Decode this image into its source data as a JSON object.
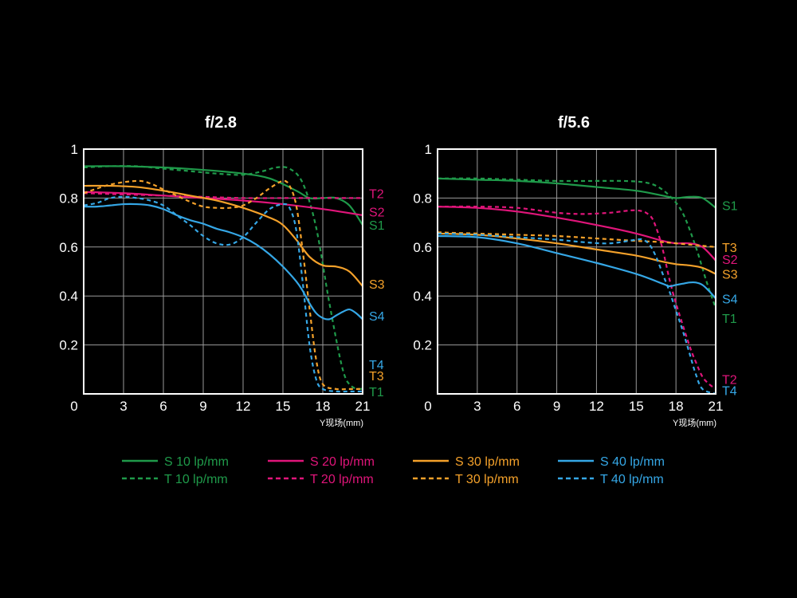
{
  "colors": {
    "background": "#000000",
    "axis": "#ffffff",
    "grid": "#9a9a9a",
    "green": "#1f9a4a",
    "magenta": "#e0157a",
    "orange": "#f4a12a",
    "blue": "#35a7e6"
  },
  "legend": [
    {
      "label": "S 10 lp/mm",
      "color": "#1f9a4a",
      "dash": false
    },
    {
      "label": "S 20 lp/mm",
      "color": "#e0157a",
      "dash": false
    },
    {
      "label": "S 30 lp/mm",
      "color": "#f4a12a",
      "dash": false
    },
    {
      "label": "S 40 lp/mm",
      "color": "#35a7e6",
      "dash": false
    },
    {
      "label": "T 10 lp/mm",
      "color": "#1f9a4a",
      "dash": true
    },
    {
      "label": "T 20 lp/mm",
      "color": "#e0157a",
      "dash": true
    },
    {
      "label": "T 30 lp/mm",
      "color": "#f4a12a",
      "dash": true
    },
    {
      "label": "T 40 lp/mm",
      "color": "#35a7e6",
      "dash": true
    }
  ],
  "chart_data": [
    {
      "type": "line",
      "title": "f/2.8",
      "xlabel": "Y现场(mm)",
      "ylabel": "",
      "xlim": [
        0,
        21
      ],
      "ylim": [
        0,
        1
      ],
      "xticks": [
        0,
        3,
        6,
        9,
        12,
        15,
        18,
        21
      ],
      "yticks": [
        0.2,
        0.4,
        0.6,
        0.8,
        1
      ],
      "ytick_labels": [
        "0.2",
        "0.4",
        "0.6",
        "0.8",
        "1"
      ],
      "grid": true,
      "series": [
        {
          "key": "S1",
          "color": "#1f9a4a",
          "dash": false,
          "end_label": "S1",
          "label_y": 0.69,
          "x": [
            0,
            3,
            6,
            9,
            12,
            14,
            16,
            17,
            18,
            19,
            20,
            21
          ],
          "y": [
            0.93,
            0.93,
            0.925,
            0.915,
            0.9,
            0.88,
            0.83,
            0.8,
            0.8,
            0.8,
            0.77,
            0.69
          ]
        },
        {
          "key": "T1",
          "color": "#1f9a4a",
          "dash": true,
          "end_label": "T1",
          "label_y": 0.01,
          "x": [
            0,
            2,
            4,
            6,
            8,
            10,
            12,
            13.5,
            14.5,
            15.5,
            16.5,
            17.5,
            18.5,
            19.5,
            20.2,
            21
          ],
          "y": [
            0.925,
            0.93,
            0.93,
            0.92,
            0.91,
            0.9,
            0.895,
            0.91,
            0.925,
            0.92,
            0.86,
            0.68,
            0.37,
            0.1,
            0.03,
            0.02
          ]
        },
        {
          "key": "S2",
          "color": "#e0157a",
          "dash": false,
          "end_label": "S2",
          "label_y": 0.745,
          "x": [
            0,
            3,
            6,
            9,
            12,
            15,
            18,
            21
          ],
          "y": [
            0.825,
            0.82,
            0.81,
            0.8,
            0.79,
            0.775,
            0.755,
            0.73
          ]
        },
        {
          "key": "T2",
          "color": "#e0157a",
          "dash": true,
          "end_label": "T2",
          "label_y": 0.82,
          "x": [
            0,
            3,
            6,
            9,
            12,
            15,
            18,
            21
          ],
          "y": [
            0.82,
            0.815,
            0.81,
            0.805,
            0.8,
            0.8,
            0.8,
            0.8
          ]
        },
        {
          "key": "S3",
          "color": "#f4a12a",
          "dash": false,
          "end_label": "S3",
          "label_y": 0.45,
          "x": [
            0,
            2,
            4,
            6,
            8,
            10,
            12,
            14,
            15,
            16,
            17,
            18,
            19,
            20,
            21
          ],
          "y": [
            0.85,
            0.85,
            0.845,
            0.83,
            0.81,
            0.79,
            0.76,
            0.72,
            0.69,
            0.63,
            0.56,
            0.525,
            0.52,
            0.5,
            0.44
          ]
        },
        {
          "key": "T3",
          "color": "#f4a12a",
          "dash": true,
          "end_label": "T3",
          "label_y": 0.075,
          "x": [
            0,
            2,
            4,
            5,
            6,
            7,
            8,
            9,
            10,
            11,
            12,
            13,
            14,
            15,
            15.5,
            16,
            16.5,
            17,
            17.5,
            18,
            19,
            20,
            21
          ],
          "y": [
            0.82,
            0.855,
            0.87,
            0.86,
            0.835,
            0.81,
            0.785,
            0.765,
            0.76,
            0.76,
            0.77,
            0.8,
            0.84,
            0.87,
            0.85,
            0.77,
            0.58,
            0.35,
            0.14,
            0.04,
            0.02,
            0.02,
            0.02
          ]
        },
        {
          "key": "S4",
          "color": "#35a7e6",
          "dash": false,
          "end_label": "S4",
          "label_y": 0.32,
          "x": [
            0,
            1,
            2,
            3,
            4,
            5,
            6,
            7,
            8,
            9,
            10,
            11,
            12,
            13,
            14,
            15,
            16,
            16.5,
            17,
            17.5,
            18,
            18.5,
            19,
            19.5,
            20,
            20.5,
            21
          ],
          "y": [
            0.765,
            0.765,
            0.77,
            0.775,
            0.775,
            0.77,
            0.755,
            0.73,
            0.71,
            0.695,
            0.675,
            0.66,
            0.64,
            0.61,
            0.57,
            0.52,
            0.46,
            0.42,
            0.37,
            0.33,
            0.31,
            0.305,
            0.32,
            0.335,
            0.345,
            0.33,
            0.305
          ]
        },
        {
          "key": "T4",
          "color": "#35a7e6",
          "dash": true,
          "end_label": "T4",
          "label_y": 0.12,
          "x": [
            0,
            1,
            2,
            3,
            4,
            5,
            6,
            7,
            8,
            9,
            10,
            11,
            12,
            13,
            14,
            15,
            15.5,
            16,
            16.5,
            17,
            17.5,
            18,
            19,
            20,
            21
          ],
          "y": [
            0.77,
            0.78,
            0.8,
            0.805,
            0.8,
            0.79,
            0.77,
            0.73,
            0.69,
            0.645,
            0.615,
            0.61,
            0.64,
            0.7,
            0.755,
            0.775,
            0.76,
            0.67,
            0.45,
            0.2,
            0.06,
            0.02,
            0.01,
            0.01,
            0.01
          ]
        }
      ]
    },
    {
      "type": "line",
      "title": "f/5.6",
      "xlabel": "Y现场(mm)",
      "ylabel": "",
      "xlim": [
        0,
        21
      ],
      "ylim": [
        0,
        1
      ],
      "xticks": [
        0,
        3,
        6,
        9,
        12,
        15,
        18,
        21
      ],
      "yticks": [
        0.2,
        0.4,
        0.6,
        0.8,
        1
      ],
      "ytick_labels": [
        "0.2",
        "0.4",
        "0.6",
        "0.8",
        "1"
      ],
      "grid": true,
      "series": [
        {
          "key": "S1",
          "color": "#1f9a4a",
          "dash": false,
          "end_label": "S1",
          "label_y": 0.77,
          "x": [
            0,
            3,
            6,
            9,
            12,
            15,
            17,
            18,
            19,
            20,
            21
          ],
          "y": [
            0.88,
            0.875,
            0.87,
            0.86,
            0.845,
            0.83,
            0.81,
            0.8,
            0.805,
            0.8,
            0.76
          ]
        },
        {
          "key": "T1",
          "color": "#1f9a4a",
          "dash": true,
          "end_label": "T1",
          "label_y": 0.31,
          "x": [
            0,
            3,
            6,
            9,
            12,
            14,
            15.5,
            16.5,
            17.5,
            18.5,
            19.5,
            20.3,
            21
          ],
          "y": [
            0.88,
            0.88,
            0.875,
            0.87,
            0.87,
            0.87,
            0.865,
            0.85,
            0.81,
            0.74,
            0.6,
            0.46,
            0.35
          ]
        },
        {
          "key": "S2",
          "color": "#e0157a",
          "dash": false,
          "end_label": "S2",
          "label_y": 0.55,
          "x": [
            0,
            3,
            6,
            9,
            12,
            15,
            17,
            18,
            19,
            20,
            21
          ],
          "y": [
            0.765,
            0.76,
            0.745,
            0.72,
            0.69,
            0.655,
            0.625,
            0.615,
            0.615,
            0.6,
            0.545
          ]
        },
        {
          "key": "T2",
          "color": "#e0157a",
          "dash": true,
          "end_label": "T2",
          "label_y": 0.06,
          "x": [
            0,
            3,
            6,
            9,
            11,
            13,
            15,
            16,
            16.5,
            17,
            17.5,
            18,
            19,
            19.5,
            20,
            20.5,
            21
          ],
          "y": [
            0.765,
            0.765,
            0.76,
            0.74,
            0.735,
            0.74,
            0.75,
            0.73,
            0.68,
            0.59,
            0.47,
            0.37,
            0.2,
            0.13,
            0.07,
            0.04,
            0.02
          ]
        },
        {
          "key": "S3",
          "color": "#f4a12a",
          "dash": false,
          "end_label": "S3",
          "label_y": 0.49,
          "x": [
            0,
            3,
            6,
            9,
            12,
            15,
            17,
            18,
            19,
            20,
            21
          ],
          "y": [
            0.655,
            0.65,
            0.635,
            0.615,
            0.59,
            0.565,
            0.54,
            0.53,
            0.525,
            0.515,
            0.49
          ]
        },
        {
          "key": "T3",
          "color": "#f4a12a",
          "dash": true,
          "end_label": "T3",
          "label_y": 0.6,
          "x": [
            0,
            3,
            6,
            9,
            12,
            15,
            17,
            18,
            19,
            20,
            21
          ],
          "y": [
            0.66,
            0.655,
            0.65,
            0.645,
            0.635,
            0.625,
            0.62,
            0.615,
            0.61,
            0.605,
            0.6
          ]
        },
        {
          "key": "S4",
          "color": "#35a7e6",
          "dash": false,
          "end_label": "S4",
          "label_y": 0.39,
          "x": [
            0,
            3,
            6,
            9,
            12,
            15,
            17,
            17.5,
            18,
            18.5,
            19,
            19.5,
            20,
            20.5,
            21
          ],
          "y": [
            0.645,
            0.64,
            0.615,
            0.575,
            0.535,
            0.49,
            0.45,
            0.44,
            0.445,
            0.45,
            0.455,
            0.455,
            0.445,
            0.42,
            0.39
          ]
        },
        {
          "key": "T4",
          "color": "#35a7e6",
          "dash": true,
          "end_label": "T4",
          "label_y": 0.015,
          "x": [
            0,
            3,
            6,
            9,
            11,
            13,
            15,
            15.5,
            16,
            16.5,
            17,
            17.5,
            18,
            18.5,
            19,
            19.5,
            20,
            21
          ],
          "y": [
            0.655,
            0.65,
            0.64,
            0.63,
            0.62,
            0.615,
            0.63,
            0.63,
            0.61,
            0.56,
            0.49,
            0.42,
            0.34,
            0.26,
            0.17,
            0.08,
            0.02,
            0.0
          ]
        }
      ]
    }
  ]
}
